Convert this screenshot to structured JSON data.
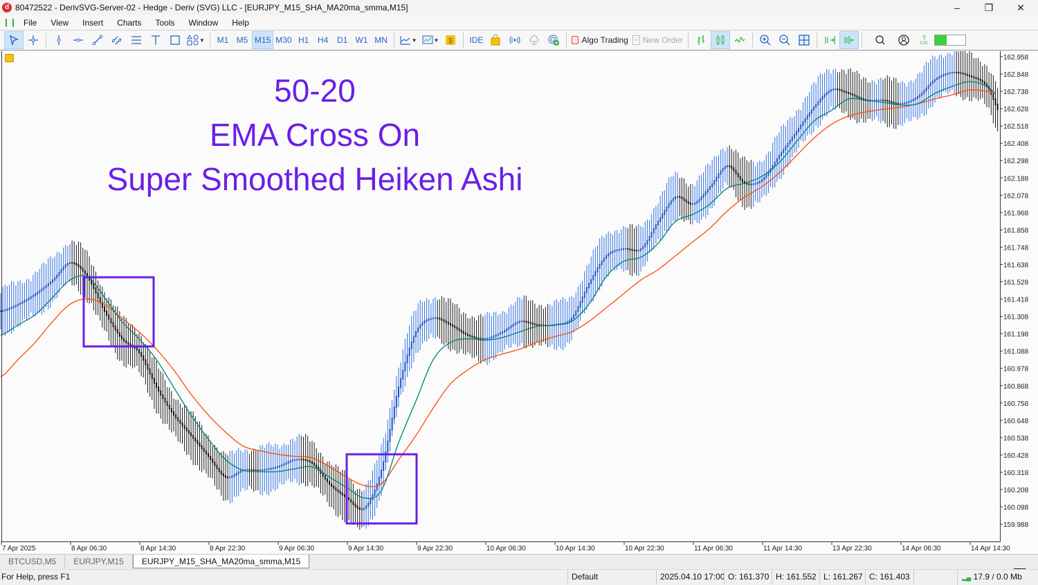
{
  "window": {
    "title": "80472522 - DerivSVG-Server-02 - Hedge - Deriv (SVG) LLC - [EURJPY_M15_SHA_MA20ma_smma,M15]",
    "app_icon_letter": "d",
    "minimize": "–",
    "restore": "❐",
    "close": "✕"
  },
  "menu": [
    "File",
    "View",
    "Insert",
    "Charts",
    "Tools",
    "Window",
    "Help"
  ],
  "toolbar": {
    "timeframes": [
      "M1",
      "M5",
      "M15",
      "M30",
      "H1",
      "H4",
      "D1",
      "W1",
      "MN"
    ],
    "active_timeframe": "M15",
    "ide_label": "IDE",
    "algo_trading_label": "Algo Trading",
    "new_order_label": "New Order",
    "lvl_label": "LVL",
    "icons": [
      "cursor-icon",
      "crosshair-icon",
      "vertical-line-icon",
      "horizontal-line-icon",
      "trendline-icon",
      "channel-icon",
      "fibonacci-icon",
      "text-icon",
      "rectangle-icon",
      "shapes-icon",
      "indicators-icon",
      "chart-templates-icon",
      "dollar-icon",
      "market-bag-icon",
      "signals-icon",
      "cloud-icon",
      "vps-icon",
      "bar-chart-icon",
      "candlestick-icon",
      "line-chart-icon",
      "zoom-in-icon",
      "zoom-out-icon",
      "tile-icon",
      "autoscroll-icon",
      "chart-shift-icon",
      "search-icon",
      "account-icon"
    ]
  },
  "chart": {
    "annotations": [
      "50-20",
      "EMA Cross On",
      "Super Smoothed Heiken Ashi"
    ],
    "annotation_color": "#6a1fe6",
    "colors": {
      "up": "#2f6fe4",
      "down": "#1a1a1a",
      "teal_ma": "#00807a",
      "orange_ma": "#ff4a0a",
      "box": "#6a1fe6"
    }
  },
  "chart_data": {
    "type": "line",
    "title": "",
    "symbol": "EURJPY",
    "timeframe": "M15",
    "y_ticks": [
      "162.958",
      "162.848",
      "162.738",
      "162.628",
      "162.518",
      "162.408",
      "162.298",
      "162.188",
      "162.078",
      "161.968",
      "161.858",
      "161.748",
      "161.638",
      "161.528",
      "161.418",
      "161.308",
      "161.198",
      "161.088",
      "160.978",
      "160.868",
      "160.758",
      "160.648",
      "160.538",
      "160.428",
      "160.318",
      "160.208",
      "160.098",
      "159.988"
    ],
    "ylim": [
      159.95,
      163.0
    ],
    "x_ticks": [
      "7 Apr 2025",
      "8 Apr 06:30",
      "8 Apr 14:30",
      "8 Apr 22:30",
      "9 Apr 06:30",
      "9 Apr 14:30",
      "9 Apr 22:30",
      "10 Apr 06:30",
      "10 Apr 14:30",
      "10 Apr 22:30",
      "11 Apr 06:30",
      "11 Apr 14:30",
      "13 Apr 22:30",
      "14 Apr 06:30",
      "14 Apr 14:30"
    ],
    "x": [
      "7 Apr 22:30",
      "8 Apr 00:30",
      "8 Apr 02:30",
      "8 Apr 04:30",
      "8 Apr 06:30",
      "8 Apr 08:30",
      "8 Apr 10:30",
      "8 Apr 12:30",
      "8 Apr 14:30",
      "8 Apr 16:30",
      "8 Apr 18:30",
      "8 Apr 20:30",
      "8 Apr 22:30",
      "9 Apr 00:30",
      "9 Apr 02:30",
      "9 Apr 04:30",
      "9 Apr 06:30",
      "9 Apr 08:30",
      "9 Apr 10:30",
      "9 Apr 12:30",
      "9 Apr 14:30",
      "9 Apr 16:30",
      "9 Apr 18:30",
      "9 Apr 20:30",
      "9 Apr 22:30",
      "10 Apr 00:30",
      "10 Apr 02:30",
      "10 Apr 04:30",
      "10 Apr 06:30",
      "10 Apr 08:30",
      "10 Apr 10:30",
      "10 Apr 12:30",
      "10 Apr 14:30",
      "10 Apr 16:30",
      "10 Apr 18:30",
      "10 Apr 20:30",
      "10 Apr 22:30",
      "11 Apr 00:30",
      "11 Apr 02:30",
      "11 Apr 04:30",
      "11 Apr 06:30",
      "11 Apr 08:30",
      "11 Apr 10:30",
      "11 Apr 12:30",
      "11 Apr 14:30",
      "11 Apr 16:30",
      "11 Apr 18:30",
      "11 Apr 20:30",
      "13 Apr 22:30",
      "14 Apr 00:30",
      "14 Apr 02:30",
      "14 Apr 04:30",
      "14 Apr 06:30",
      "14 Apr 08:30",
      "14 Apr 10:30",
      "14 Apr 12:30",
      "14 Apr 14:30",
      "14 Apr 16:30",
      "14 Apr 18:30"
    ],
    "series": [
      {
        "key": "heiken_ashi_mid",
        "values": [
          161.341,
          161.385,
          161.451,
          161.539,
          161.649,
          161.561,
          161.341,
          161.166,
          161.078,
          160.858,
          160.682,
          160.551,
          160.419,
          160.287,
          160.331,
          160.331,
          160.353,
          160.397,
          160.375,
          160.243,
          160.155,
          160.089,
          160.331,
          160.858,
          161.21,
          161.297,
          161.254,
          161.188,
          161.166,
          161.21,
          161.276,
          161.254,
          161.254,
          161.297,
          161.517,
          161.693,
          161.737,
          161.737,
          161.912,
          162.066,
          162.022,
          162.132,
          162.264,
          162.154,
          162.176,
          162.33,
          162.483,
          162.637,
          162.747,
          162.725,
          162.681,
          162.681,
          162.659,
          162.703,
          162.813,
          162.857,
          162.835,
          162.769,
          162.549
        ]
      },
      {
        "key": "ma_fast_teal",
        "values": [
          161.188,
          161.254,
          161.319,
          161.429,
          161.539,
          161.561,
          161.429,
          161.276,
          161.166,
          161.034,
          160.858,
          160.682,
          160.529,
          160.397,
          160.331,
          160.322,
          160.322,
          160.34,
          160.353,
          160.287,
          160.221,
          160.155,
          160.199,
          160.507,
          160.77,
          161.034,
          161.144,
          161.166,
          161.157,
          161.174,
          161.21,
          161.245,
          161.254,
          161.276,
          161.385,
          161.561,
          161.658,
          161.684,
          161.772,
          161.912,
          161.956,
          162.022,
          162.123,
          162.154,
          162.198,
          162.286,
          162.418,
          162.549,
          162.615,
          162.69,
          162.681,
          162.668,
          162.651,
          162.659,
          162.725,
          162.769,
          162.8,
          162.769,
          162.681
        ]
      },
      {
        "key": "ma_slow_orange",
        "values": [
          160.924,
          161.034,
          161.144,
          161.276,
          161.385,
          161.42,
          161.385,
          161.297,
          161.21,
          161.1,
          160.968,
          160.814,
          160.682,
          160.573,
          160.485,
          160.454,
          160.432,
          160.419,
          160.41,
          160.353,
          160.287,
          160.234,
          160.243,
          160.397,
          160.551,
          160.726,
          160.88,
          160.968,
          161.034,
          161.069,
          161.1,
          161.144,
          161.179,
          161.21,
          161.276,
          161.363,
          161.451,
          161.539,
          161.605,
          161.693,
          161.781,
          161.869,
          161.978,
          162.066,
          162.132,
          162.22,
          162.33,
          162.44,
          162.527,
          162.58,
          162.607,
          162.624,
          162.637,
          162.659,
          162.69,
          162.716,
          162.747,
          162.738,
          162.716
        ]
      }
    ],
    "grid": false
  },
  "tabs": [
    {
      "label": "BTCUSD,M5",
      "active": false
    },
    {
      "label": "EURJPY,M15",
      "active": false
    },
    {
      "label": "EURJPY_M15_SHA_MA20ma_smma,M15",
      "active": true
    }
  ],
  "status": {
    "help": "For Help, press F1",
    "profile": "Default",
    "datetime": "2025.04.10 17:00",
    "open": "O: 161.370",
    "high": "H: 161.552",
    "low": "L: 161.267",
    "close": "C: 161.403",
    "traffic": "17.9 / 0.0 Mb"
  }
}
